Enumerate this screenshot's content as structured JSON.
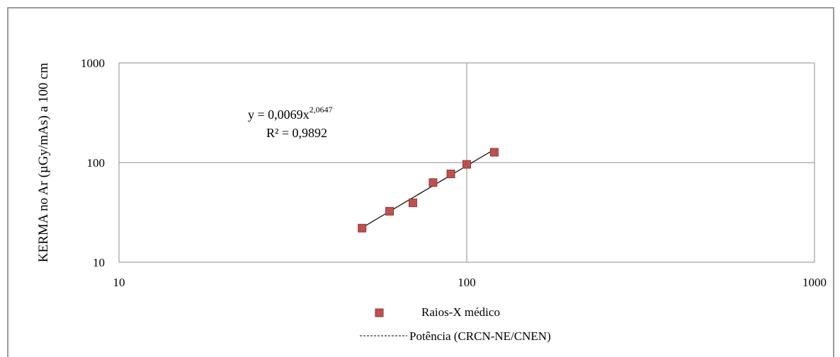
{
  "chart_data": {
    "type": "scatter",
    "x_scale": "log",
    "y_scale": "log",
    "xlim": [
      10,
      1000
    ],
    "ylim": [
      10,
      1000
    ],
    "x_ticks": [
      "10",
      "100",
      "1000"
    ],
    "y_ticks": [
      "10",
      "100",
      "1000"
    ],
    "xlabel": "",
    "ylabel": "KERMA no Ar (µGy/mAs) a 100 cm",
    "grid": true,
    "series": [
      {
        "name": "Raios-X médico",
        "color": "#c0504d",
        "marker": "square",
        "x": [
          50,
          60,
          70,
          80,
          90,
          100,
          120
        ],
        "y": [
          22,
          32.5,
          39.5,
          63,
          77,
          96,
          127
        ]
      }
    ],
    "trendline": {
      "name": "Potência  (CRCN-NE/CNEN)",
      "type": "power",
      "coef": 0.0069,
      "exponent": 2.0647,
      "x_range": [
        50,
        120
      ],
      "style": "dashed",
      "color": "#000000"
    },
    "annotation": {
      "equation_prefix": "y = 0,0069x",
      "equation_exponent": "2,0647",
      "r_squared": "R² = 0,9892"
    },
    "legend": {
      "position": "bottom",
      "items": [
        {
          "label": "Raios-X médico",
          "symbol": "square"
        },
        {
          "label": "Potência  (CRCN-NE/CNEN)",
          "symbol": "dashed-line"
        }
      ]
    }
  }
}
